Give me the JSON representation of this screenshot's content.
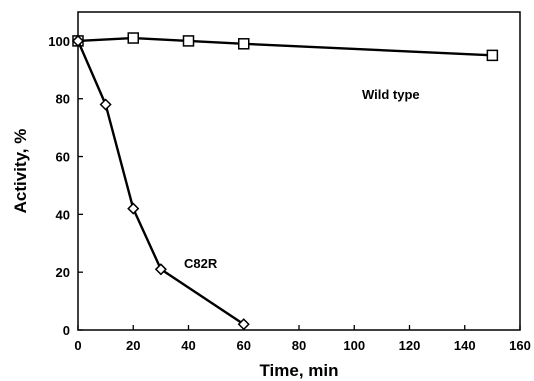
{
  "chart_data": {
    "type": "line",
    "title": "",
    "xlabel": "Time, min",
    "ylabel": "Activity, %",
    "xlim": [
      0,
      160
    ],
    "ylim": [
      0,
      110
    ],
    "x_ticks": [
      0,
      20,
      40,
      60,
      80,
      100,
      120,
      140,
      160
    ],
    "y_ticks": [
      0,
      20,
      40,
      60,
      80,
      100
    ],
    "grid": false,
    "legend": "none",
    "series": [
      {
        "name": "Wild type",
        "marker": "square",
        "color": "#000000",
        "x": [
          0,
          20,
          40,
          60,
          150
        ],
        "y": [
          100,
          101,
          100,
          99,
          95
        ]
      },
      {
        "name": "C82R",
        "marker": "diamond",
        "color": "#000000",
        "x": [
          0,
          10,
          20,
          30,
          60
        ],
        "y": [
          100,
          78,
          42,
          21,
          2
        ]
      }
    ]
  }
}
